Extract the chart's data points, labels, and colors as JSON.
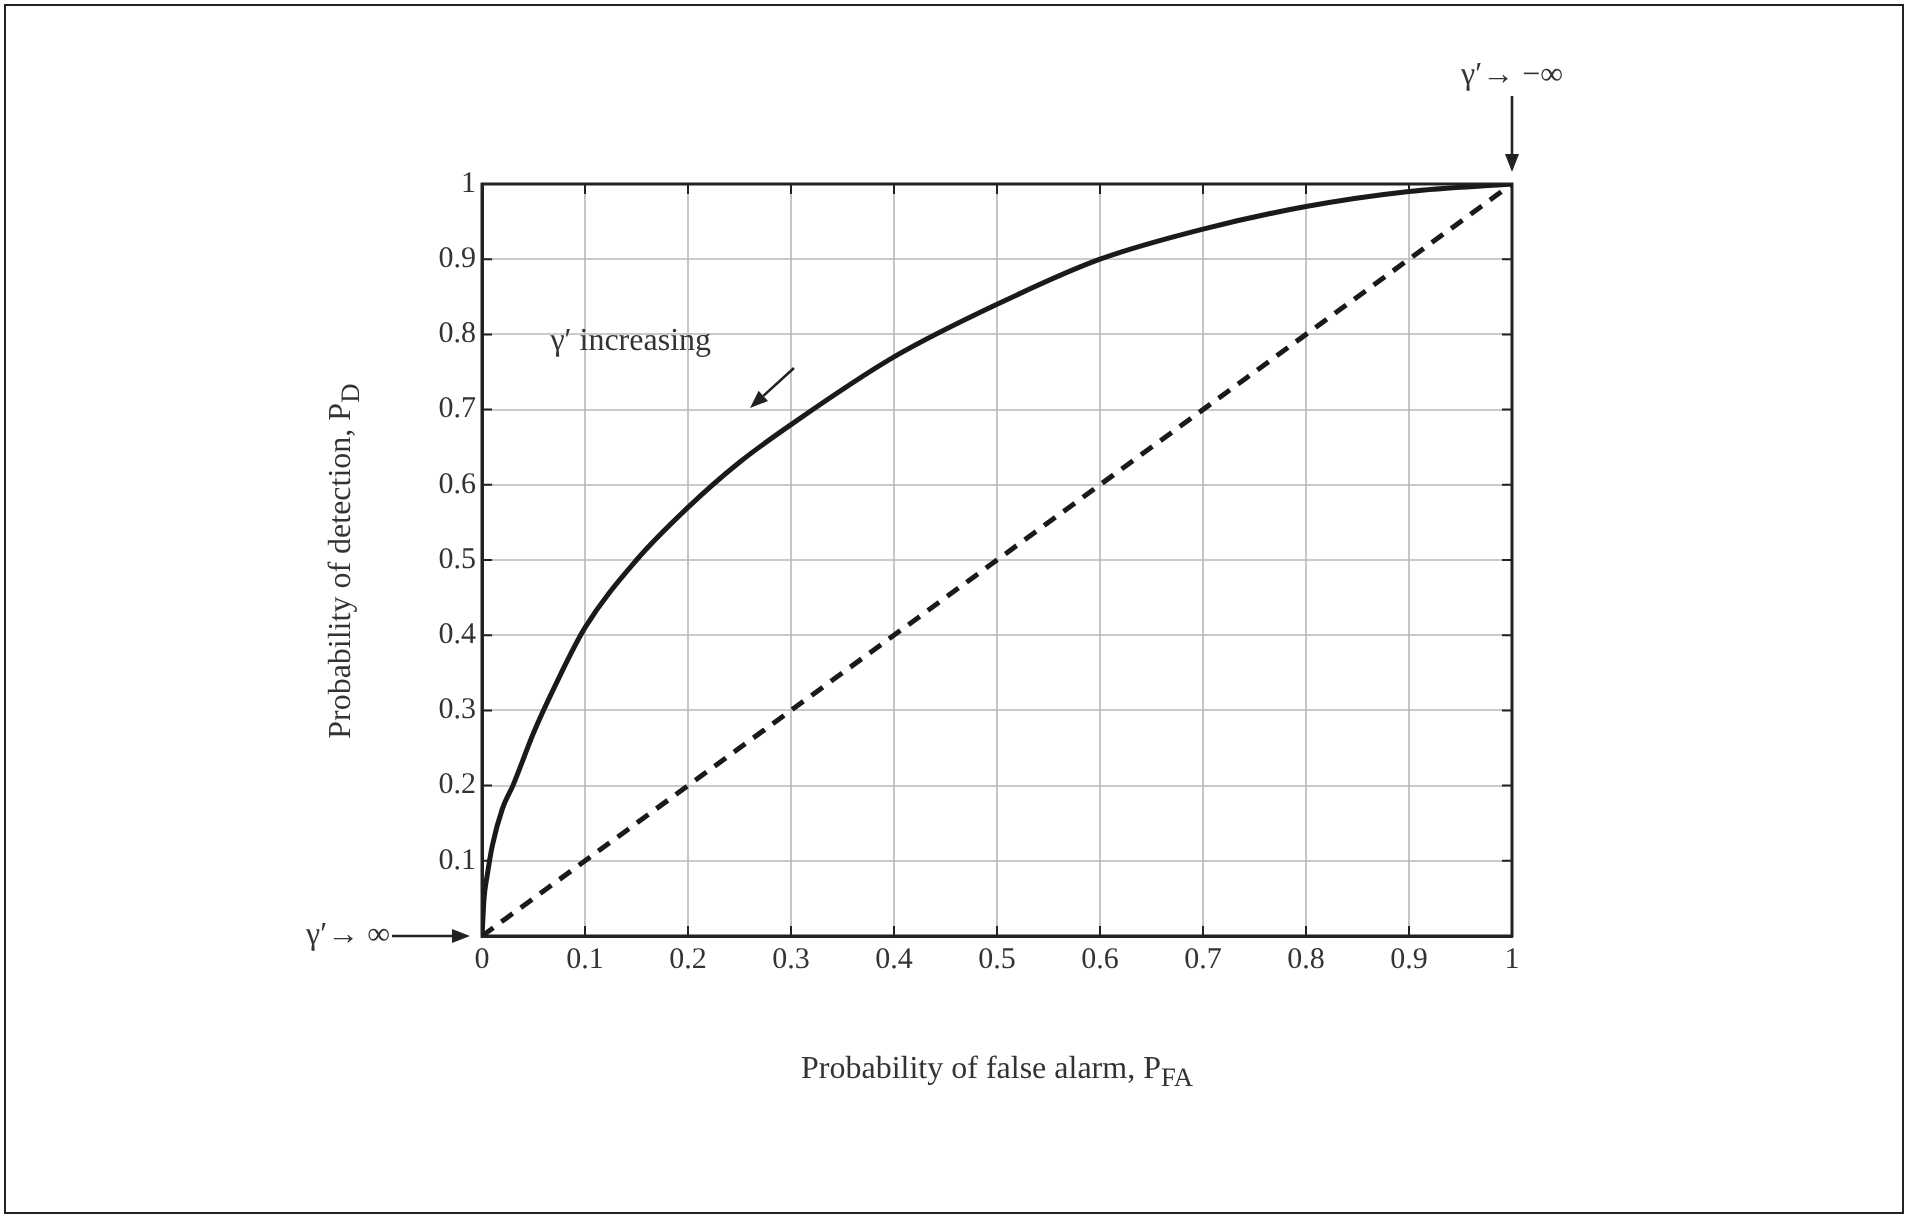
{
  "chart_data": {
    "type": "line",
    "xlabel": "Probability of false alarm, P$_{FA}$",
    "ylabel": "Probability of detection, P$_{D}$",
    "xlim": [
      0,
      1
    ],
    "ylim": [
      0,
      1
    ],
    "xticks": [
      0,
      0.1,
      0.2,
      0.3,
      0.4,
      0.5,
      0.6,
      0.7,
      0.8,
      0.9,
      1
    ],
    "yticks": [
      0.1,
      0.2,
      0.3,
      0.4,
      0.5,
      0.6,
      0.7,
      0.8,
      0.9,
      1
    ],
    "grid": true,
    "legend": false,
    "marker": "none",
    "series": [
      {
        "color": "#1a1a1a",
        "line_style": "solid",
        "x": [
          0,
          0.002,
          0.005,
          0.01,
          0.02,
          0.03,
          0.05,
          0.07,
          0.1,
          0.15,
          0.2,
          0.25,
          0.3,
          0.4,
          0.5,
          0.6,
          0.7,
          0.8,
          0.9,
          1
        ],
        "values": [
          0,
          0.05,
          0.08,
          0.12,
          0.17,
          0.2,
          0.27,
          0.33,
          0.41,
          0.5,
          0.57,
          0.63,
          0.68,
          0.77,
          0.84,
          0.9,
          0.94,
          0.97,
          0.99,
          1
        ]
      },
      {
        "color": "#1a1a1a",
        "line_style": "dashed",
        "x": [
          0,
          1
        ],
        "values": [
          0,
          1
        ]
      }
    ],
    "annotations": [
      "γ′→ −∞",
      "γ′→ ∞",
      {
        "text": "γ′ increasing",
        "x": 0.28,
        "y": 0.67
      }
    ]
  }
}
